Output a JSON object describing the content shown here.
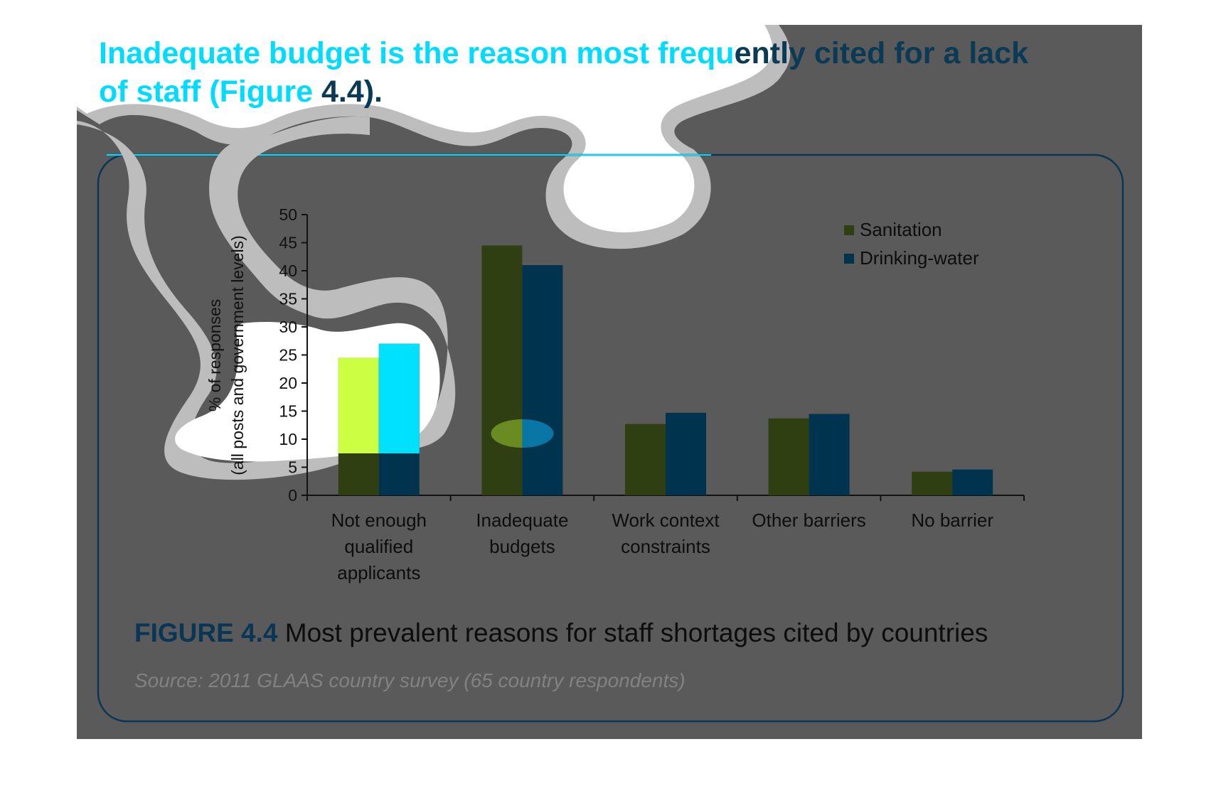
{
  "headline": {
    "lead": "Inadequate budget is the reason most frequ",
    "tail": "ently cited for a lack",
    "line2_lead": "of staff (Figure ",
    "line2_tail": "4.4)."
  },
  "figure": {
    "number": "FIGURE 4.4",
    "caption": "Most prevalent reasons for staff shortages cited by countries",
    "source": "Source: 2011 GLAAS country survey (65 country respondents)"
  },
  "colors": {
    "page_overlay": "#5a5a5a",
    "panel_border": "#0a3656",
    "sanitation": "#2f3f12",
    "drinking_water": "#00344e",
    "sanitation_highlight": "#ccff44",
    "drinking_water_highlight": "#00e1ff",
    "halo": "#bdbdbd",
    "headline": "#00dcff"
  },
  "chart_data": {
    "type": "bar",
    "categories": [
      [
        "Not enough",
        "qualified",
        "applicants"
      ],
      [
        "Inadequate",
        "budgets"
      ],
      [
        "Work context",
        "constraints"
      ],
      [
        "Other barriers"
      ],
      [
        "No barrier"
      ]
    ],
    "series": [
      {
        "name": "Sanitation",
        "values": [
          24.5,
          44.5,
          12.7,
          13.7,
          4.2
        ]
      },
      {
        "name": "Drinking-water",
        "values": [
          27,
          41,
          14.7,
          14.5,
          4.6
        ]
      }
    ],
    "ylabel": [
      "% of responses",
      "(all posts and government levels)"
    ],
    "yticks": [
      0,
      5,
      10,
      15,
      20,
      25,
      30,
      35,
      40,
      45,
      50
    ],
    "ylim": [
      0,
      50
    ],
    "legend_position": "top-right",
    "grid": false
  }
}
